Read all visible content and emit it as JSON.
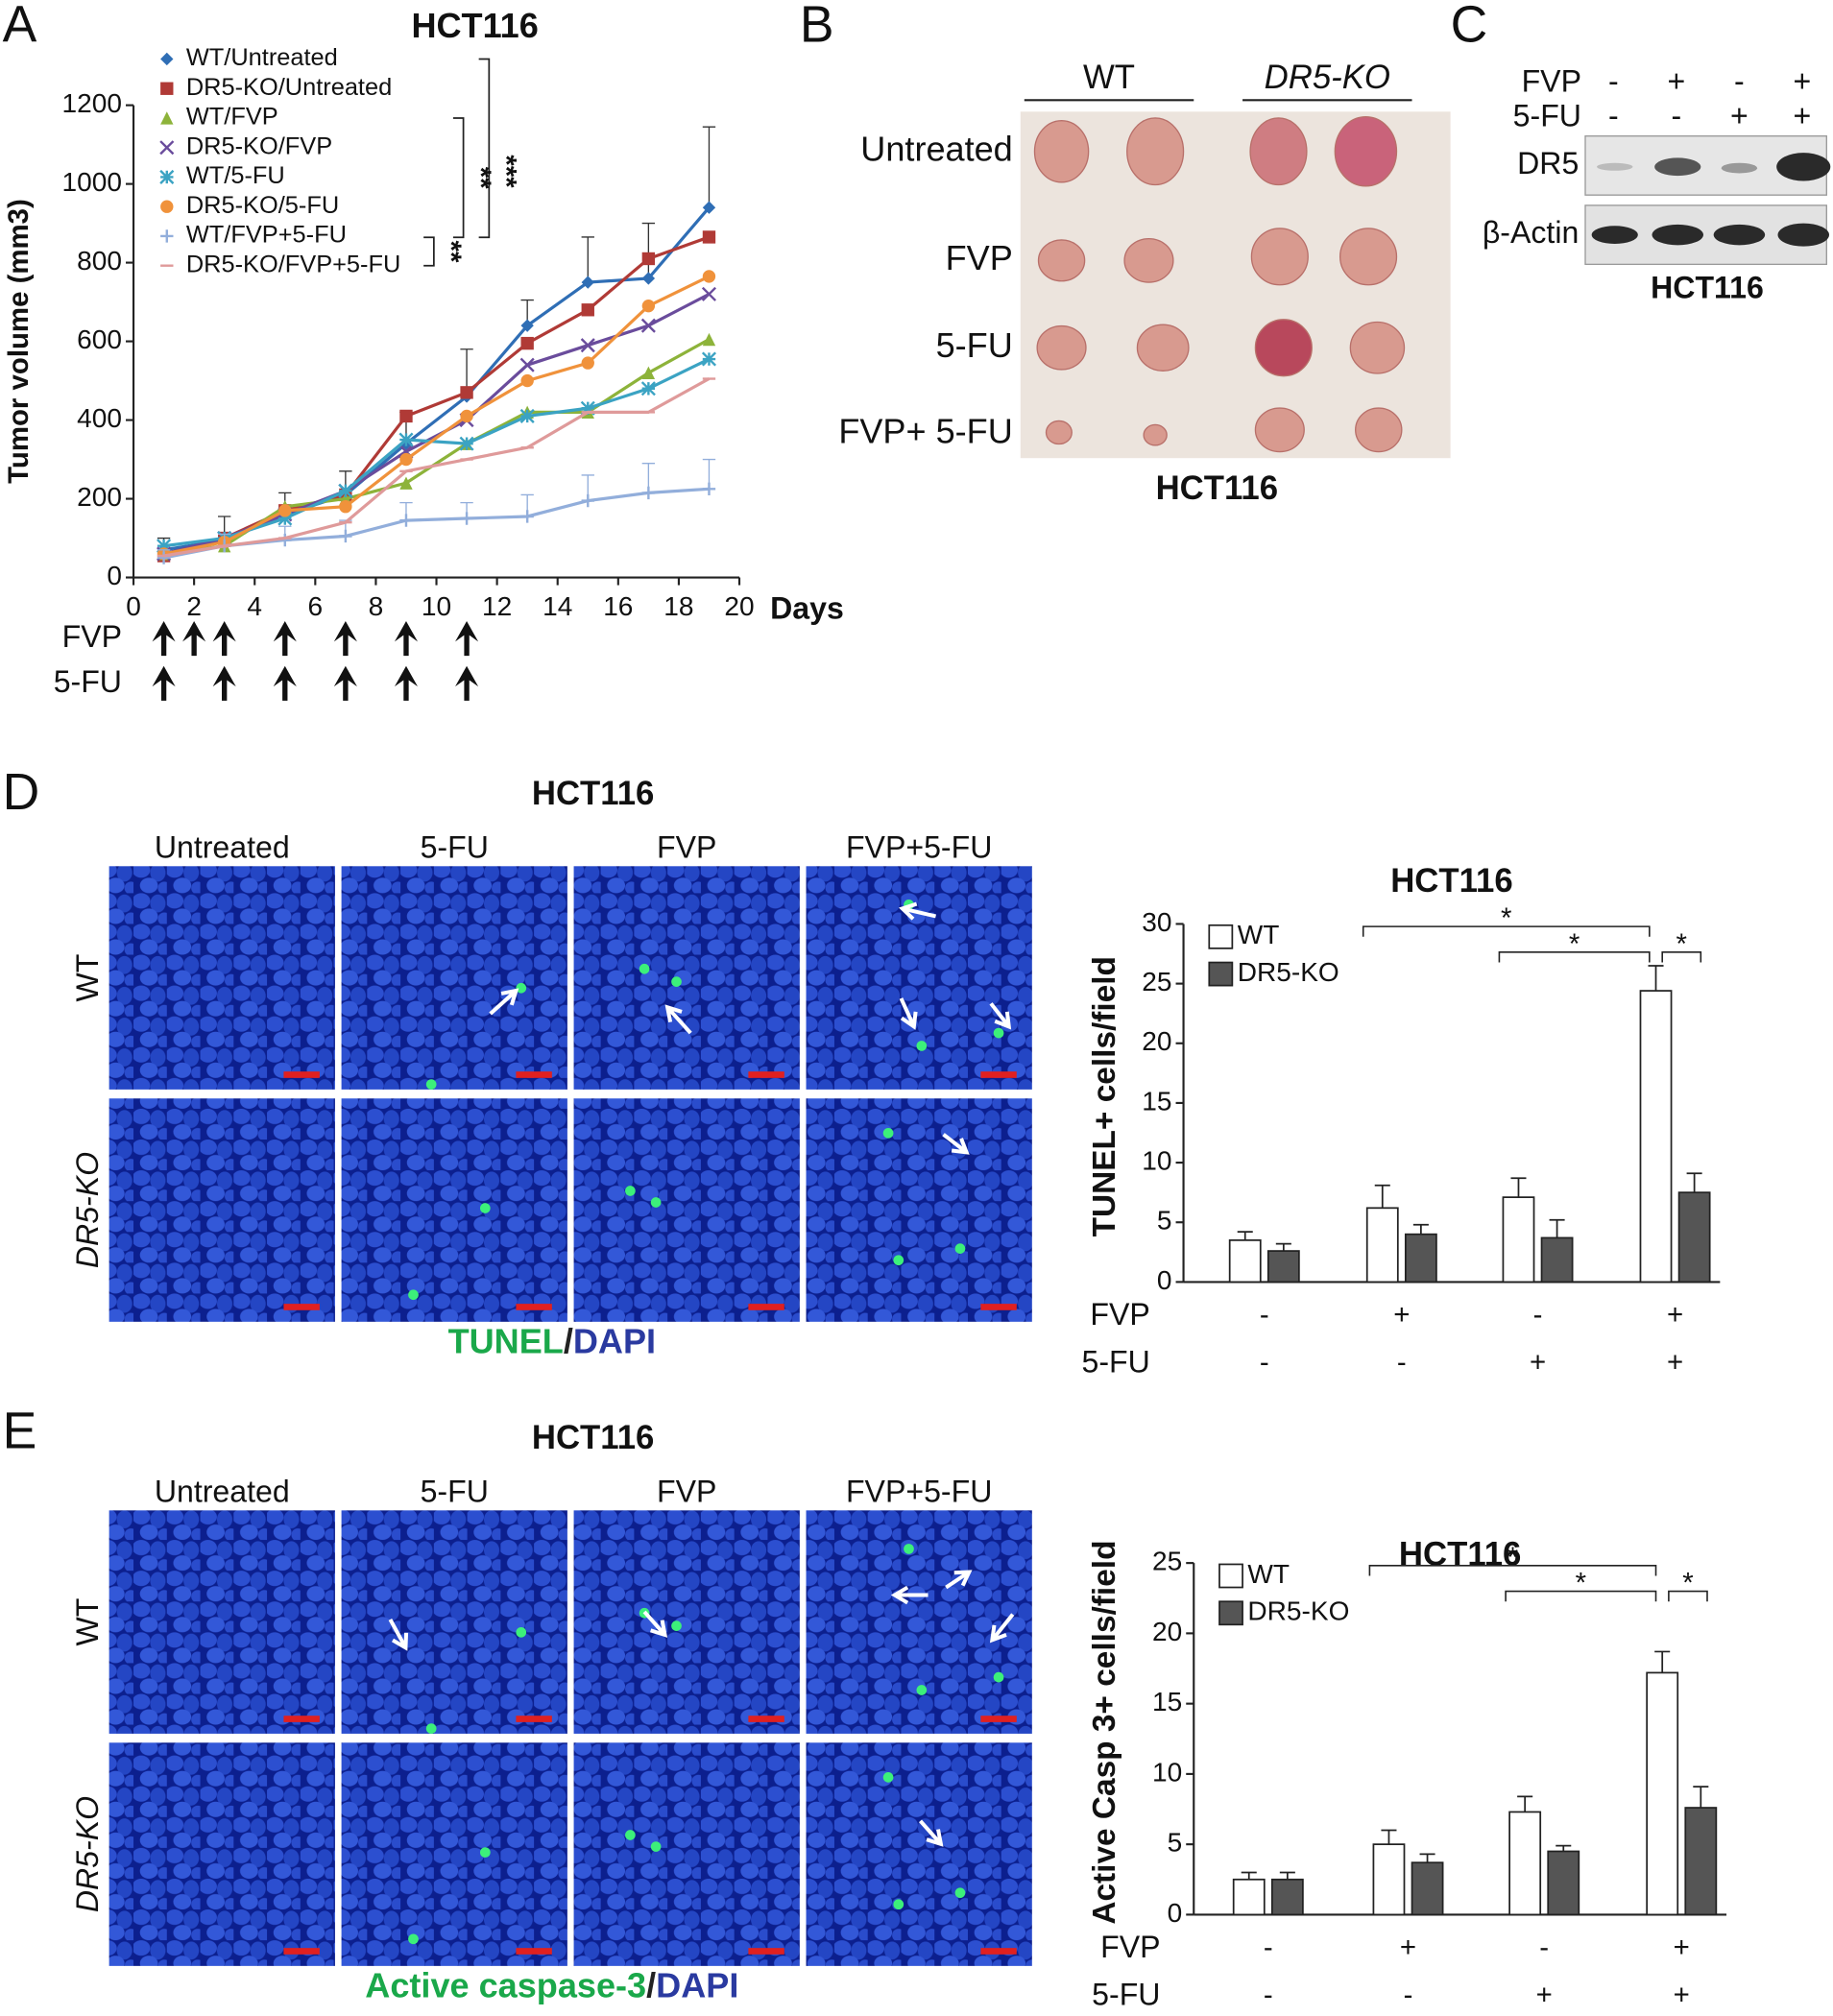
{
  "panel_labels": {
    "a": "A",
    "b": "B",
    "c": "C",
    "d": "D",
    "e": "E"
  },
  "chart_data": [
    {
      "type": "line",
      "title": "HCT116",
      "y_label": "Tumor volume (mm3)",
      "x_label": "Days",
      "xlim": [
        0,
        20
      ],
      "xticks": [
        0,
        2,
        4,
        6,
        8,
        10,
        12,
        14,
        16,
        18,
        20
      ],
      "ylim": [
        0,
        1200
      ],
      "yticks": [
        0,
        200,
        400,
        600,
        800,
        1000,
        1200
      ],
      "x": [
        1,
        3,
        5,
        7,
        9,
        11,
        13,
        15,
        17,
        19
      ],
      "series": [
        {
          "name": "WT/Untreated",
          "color": "#2f6eb5",
          "marker": "diamond",
          "values": [
            70,
            95,
            160,
            210,
            340,
            460,
            640,
            750,
            760,
            940
          ],
          "errors": [
            30,
            60,
            55,
            60,
            80,
            120,
            65,
            115,
            140,
            205
          ]
        },
        {
          "name": "DR5-KO/Untreated",
          "color": "#b03a36",
          "marker": "square",
          "values": [
            55,
            100,
            170,
            210,
            410,
            470,
            595,
            680,
            810,
            865
          ]
        },
        {
          "name": "WT/FVP",
          "color": "#8db33a",
          "marker": "triangle",
          "values": [
            60,
            80,
            180,
            200,
            240,
            340,
            420,
            420,
            520,
            605
          ]
        },
        {
          "name": "DR5-KO/FVP",
          "color": "#6a4c9c",
          "marker": "cross",
          "values": [
            60,
            100,
            160,
            220,
            320,
            400,
            540,
            590,
            640,
            720
          ]
        },
        {
          "name": "WT/5-FU",
          "color": "#3ba3c3",
          "marker": "star",
          "values": [
            80,
            100,
            150,
            220,
            350,
            340,
            410,
            430,
            480,
            555
          ]
        },
        {
          "name": "DR5-KO/5-FU",
          "color": "#f0923b",
          "marker": "circle",
          "values": [
            60,
            90,
            170,
            180,
            300,
            410,
            500,
            545,
            690,
            765
          ]
        },
        {
          "name": "WT/FVP+5-FU",
          "color": "#92aedb",
          "marker": "plus",
          "values": [
            50,
            80,
            95,
            105,
            145,
            150,
            155,
            195,
            215,
            225
          ],
          "errors": [
            20,
            30,
            35,
            40,
            45,
            40,
            55,
            65,
            75,
            75
          ]
        },
        {
          "name": "DR5-KO/FVP+5-FU",
          "color": "#df9a9a",
          "marker": "dash",
          "values": [
            55,
            80,
            100,
            140,
            270,
            300,
            330,
            420,
            420,
            505
          ]
        }
      ],
      "annotations": [
        "***",
        "**",
        "**"
      ],
      "dosing": [
        {
          "label": "FVP",
          "days": [
            1,
            2,
            3,
            5,
            7,
            9,
            11
          ]
        },
        {
          "label": "5-FU",
          "days": [
            1,
            3,
            5,
            7,
            9,
            11
          ]
        }
      ]
    },
    {
      "type": "bar",
      "title": "HCT116",
      "y_label": "TUNEL+ cells/field",
      "ylim": [
        0,
        30
      ],
      "yticks": [
        0,
        5,
        10,
        15,
        20,
        25,
        30
      ],
      "categories": [
        null,
        null,
        null,
        null
      ],
      "conditions": [
        {
          "label": "FVP",
          "signs": [
            "-",
            "+",
            "-",
            "+"
          ]
        },
        {
          "label": "5-FU",
          "signs": [
            "-",
            "-",
            "+",
            "+"
          ]
        }
      ],
      "series": [
        {
          "name": "WT",
          "color": "#ffffff",
          "values": [
            3.5,
            6.2,
            7.1,
            24.4
          ],
          "errors": [
            0.7,
            1.9,
            1.6,
            2.1
          ]
        },
        {
          "name": "DR5-KO",
          "color": "#555555",
          "values": [
            2.6,
            4.0,
            3.7,
            7.5
          ],
          "errors": [
            0.6,
            0.8,
            1.5,
            1.6
          ]
        }
      ],
      "annotations": [
        "*",
        "*",
        "*"
      ]
    },
    {
      "type": "bar",
      "title": "HCT116",
      "y_label": "Active Casp 3+ cells/field",
      "ylim": [
        0,
        25
      ],
      "yticks": [
        0,
        5,
        10,
        15,
        20,
        25
      ],
      "categories": [
        null,
        null,
        null,
        null
      ],
      "conditions": [
        {
          "label": "FVP",
          "signs": [
            "-",
            "+",
            "-",
            "+"
          ]
        },
        {
          "label": "5-FU",
          "signs": [
            "-",
            "-",
            "+",
            "+"
          ]
        }
      ],
      "series": [
        {
          "name": "WT",
          "color": "#ffffff",
          "values": [
            2.5,
            5.0,
            7.3,
            17.2
          ],
          "errors": [
            0.5,
            1.0,
            1.1,
            1.5
          ]
        },
        {
          "name": "DR5-KO",
          "color": "#555555",
          "values": [
            2.5,
            3.7,
            4.5,
            7.6
          ],
          "errors": [
            0.5,
            0.6,
            0.4,
            1.5
          ]
        }
      ],
      "annotations": [
        "*",
        "*",
        "*"
      ]
    }
  ],
  "panel_b": {
    "columns": [
      "WT",
      "DR5-KO"
    ],
    "rows": [
      "Untreated",
      "FVP",
      "5-FU",
      "FVP+ 5-FU"
    ],
    "caption": "HCT116"
  },
  "panel_c": {
    "treatments": [
      {
        "label": "FVP",
        "signs": [
          "-",
          "+",
          "-",
          "+"
        ]
      },
      {
        "label": "5-FU",
        "signs": [
          "-",
          "-",
          "+",
          "+"
        ]
      }
    ],
    "blots": [
      "DR5",
      "β-Actin"
    ],
    "caption": "HCT116"
  },
  "panel_d_images": {
    "title": "HCT116",
    "columns": [
      "Untreated",
      "5-FU",
      "FVP",
      "FVP+5-FU"
    ],
    "rows": [
      "WT",
      "DR5-KO"
    ],
    "caption": [
      "TUNEL",
      "/",
      "DAPI"
    ]
  },
  "panel_e_images": {
    "title": "HCT116",
    "columns": [
      "Untreated",
      "5-FU",
      "FVP",
      "FVP+5-FU"
    ],
    "rows": [
      "WT",
      "DR5-KO"
    ],
    "caption": [
      "Active caspase-3",
      "/",
      "DAPI"
    ]
  }
}
